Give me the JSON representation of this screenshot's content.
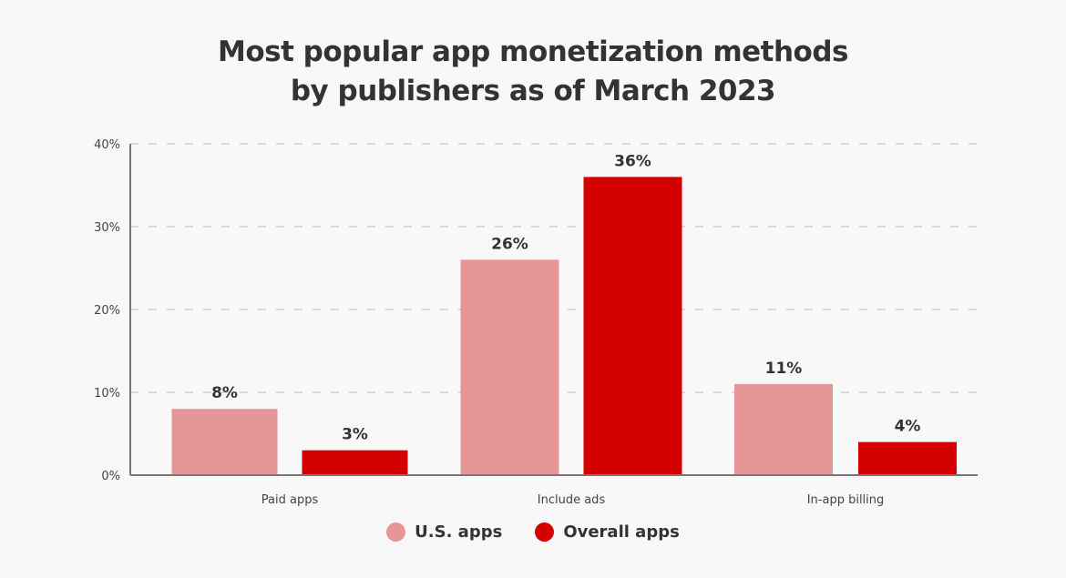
{
  "chart_data": {
    "type": "bar",
    "title_lines": [
      "Most popular app monetization methods",
      "by publishers as of March 2023"
    ],
    "categories": [
      "Paid apps",
      "Include ads",
      "In-app billing"
    ],
    "series": [
      {
        "name": "U.S. apps",
        "color": "#e69696",
        "values": [
          8,
          26,
          11
        ],
        "labels": [
          "8%",
          "26%",
          "11%"
        ]
      },
      {
        "name": "Overall apps",
        "color": "#d40000",
        "values": [
          3,
          36,
          4
        ],
        "labels": [
          "3%",
          "36%",
          "4%"
        ]
      }
    ],
    "ylim": [
      0,
      40
    ],
    "yticks": [
      0,
      10,
      20,
      30,
      40
    ],
    "ytick_labels": [
      "0%",
      "10%",
      "20%",
      "30%",
      "40%"
    ],
    "xlabel": "",
    "ylabel": "",
    "grid": true,
    "legend_position": "bottom"
  }
}
